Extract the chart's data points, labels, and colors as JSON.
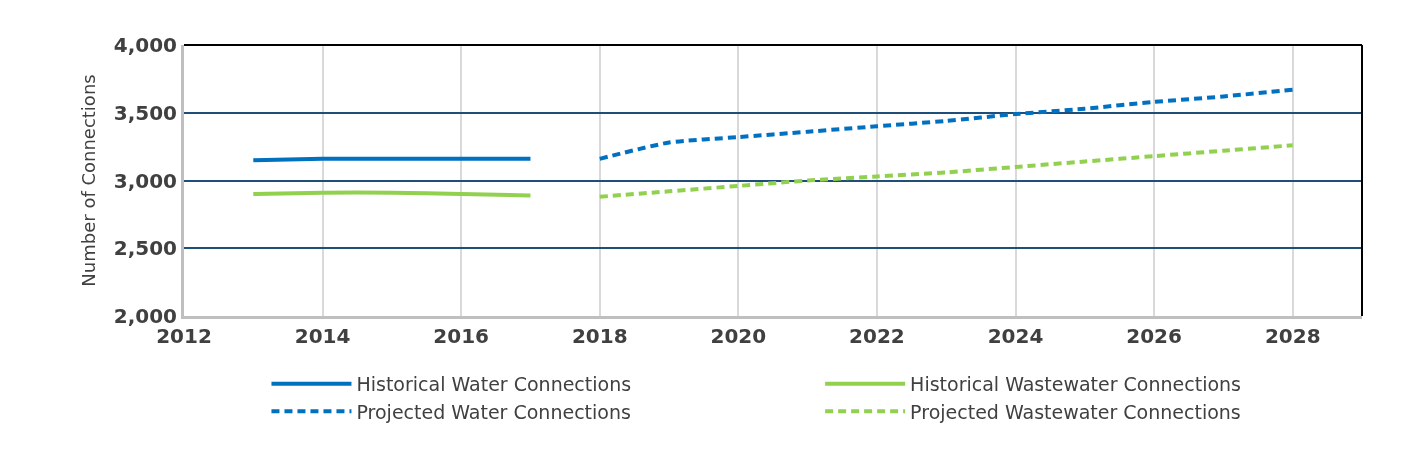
{
  "chart_data": {
    "type": "line",
    "ylabel": "Number of Connections",
    "xlim": [
      2012,
      2029
    ],
    "xticks": [
      2012,
      2014,
      2016,
      2018,
      2020,
      2022,
      2024,
      2026,
      2028
    ],
    "ylim": [
      2000,
      4000
    ],
    "yticks": [
      {
        "value": 2000,
        "label": "2,000"
      },
      {
        "value": 2500,
        "label": "2,500"
      },
      {
        "value": 3000,
        "label": "3,000"
      },
      {
        "value": 3500,
        "label": "3,500"
      },
      {
        "value": 4000,
        "label": "4,000"
      }
    ],
    "grid": true,
    "legend": "bottom",
    "marker": "none",
    "series": [
      {
        "name": "Historical Water Connections",
        "color": "#0070c0",
        "line_style": "solid",
        "x": [
          2013,
          2014,
          2015,
          2016,
          2017
        ],
        "values": [
          3150,
          3160,
          3160,
          3160,
          3160
        ]
      },
      {
        "name": "Historical Wastewater Connections",
        "color": "#92d050",
        "line_style": "solid",
        "x": [
          2013,
          2014,
          2015,
          2016,
          2017
        ],
        "values": [
          2900,
          2910,
          2910,
          2900,
          2890
        ]
      },
      {
        "name": "Projected Water Connections",
        "color": "#0070c0",
        "line_style": "dashed",
        "x": [
          2018,
          2019,
          2020,
          2021,
          2022,
          2023,
          2024,
          2025,
          2026,
          2027,
          2028
        ],
        "values": [
          3160,
          3280,
          3320,
          3360,
          3400,
          3440,
          3490,
          3530,
          3580,
          3620,
          3670
        ]
      },
      {
        "name": "Projected Wastewater Connections",
        "color": "#92d050",
        "line_style": "dashed",
        "x": [
          2018,
          2019,
          2020,
          2021,
          2022,
          2023,
          2024,
          2025,
          2026,
          2027,
          2028
        ],
        "values": [
          2880,
          2920,
          2960,
          3000,
          3030,
          3060,
          3100,
          3140,
          3180,
          3220,
          3260
        ]
      }
    ]
  }
}
